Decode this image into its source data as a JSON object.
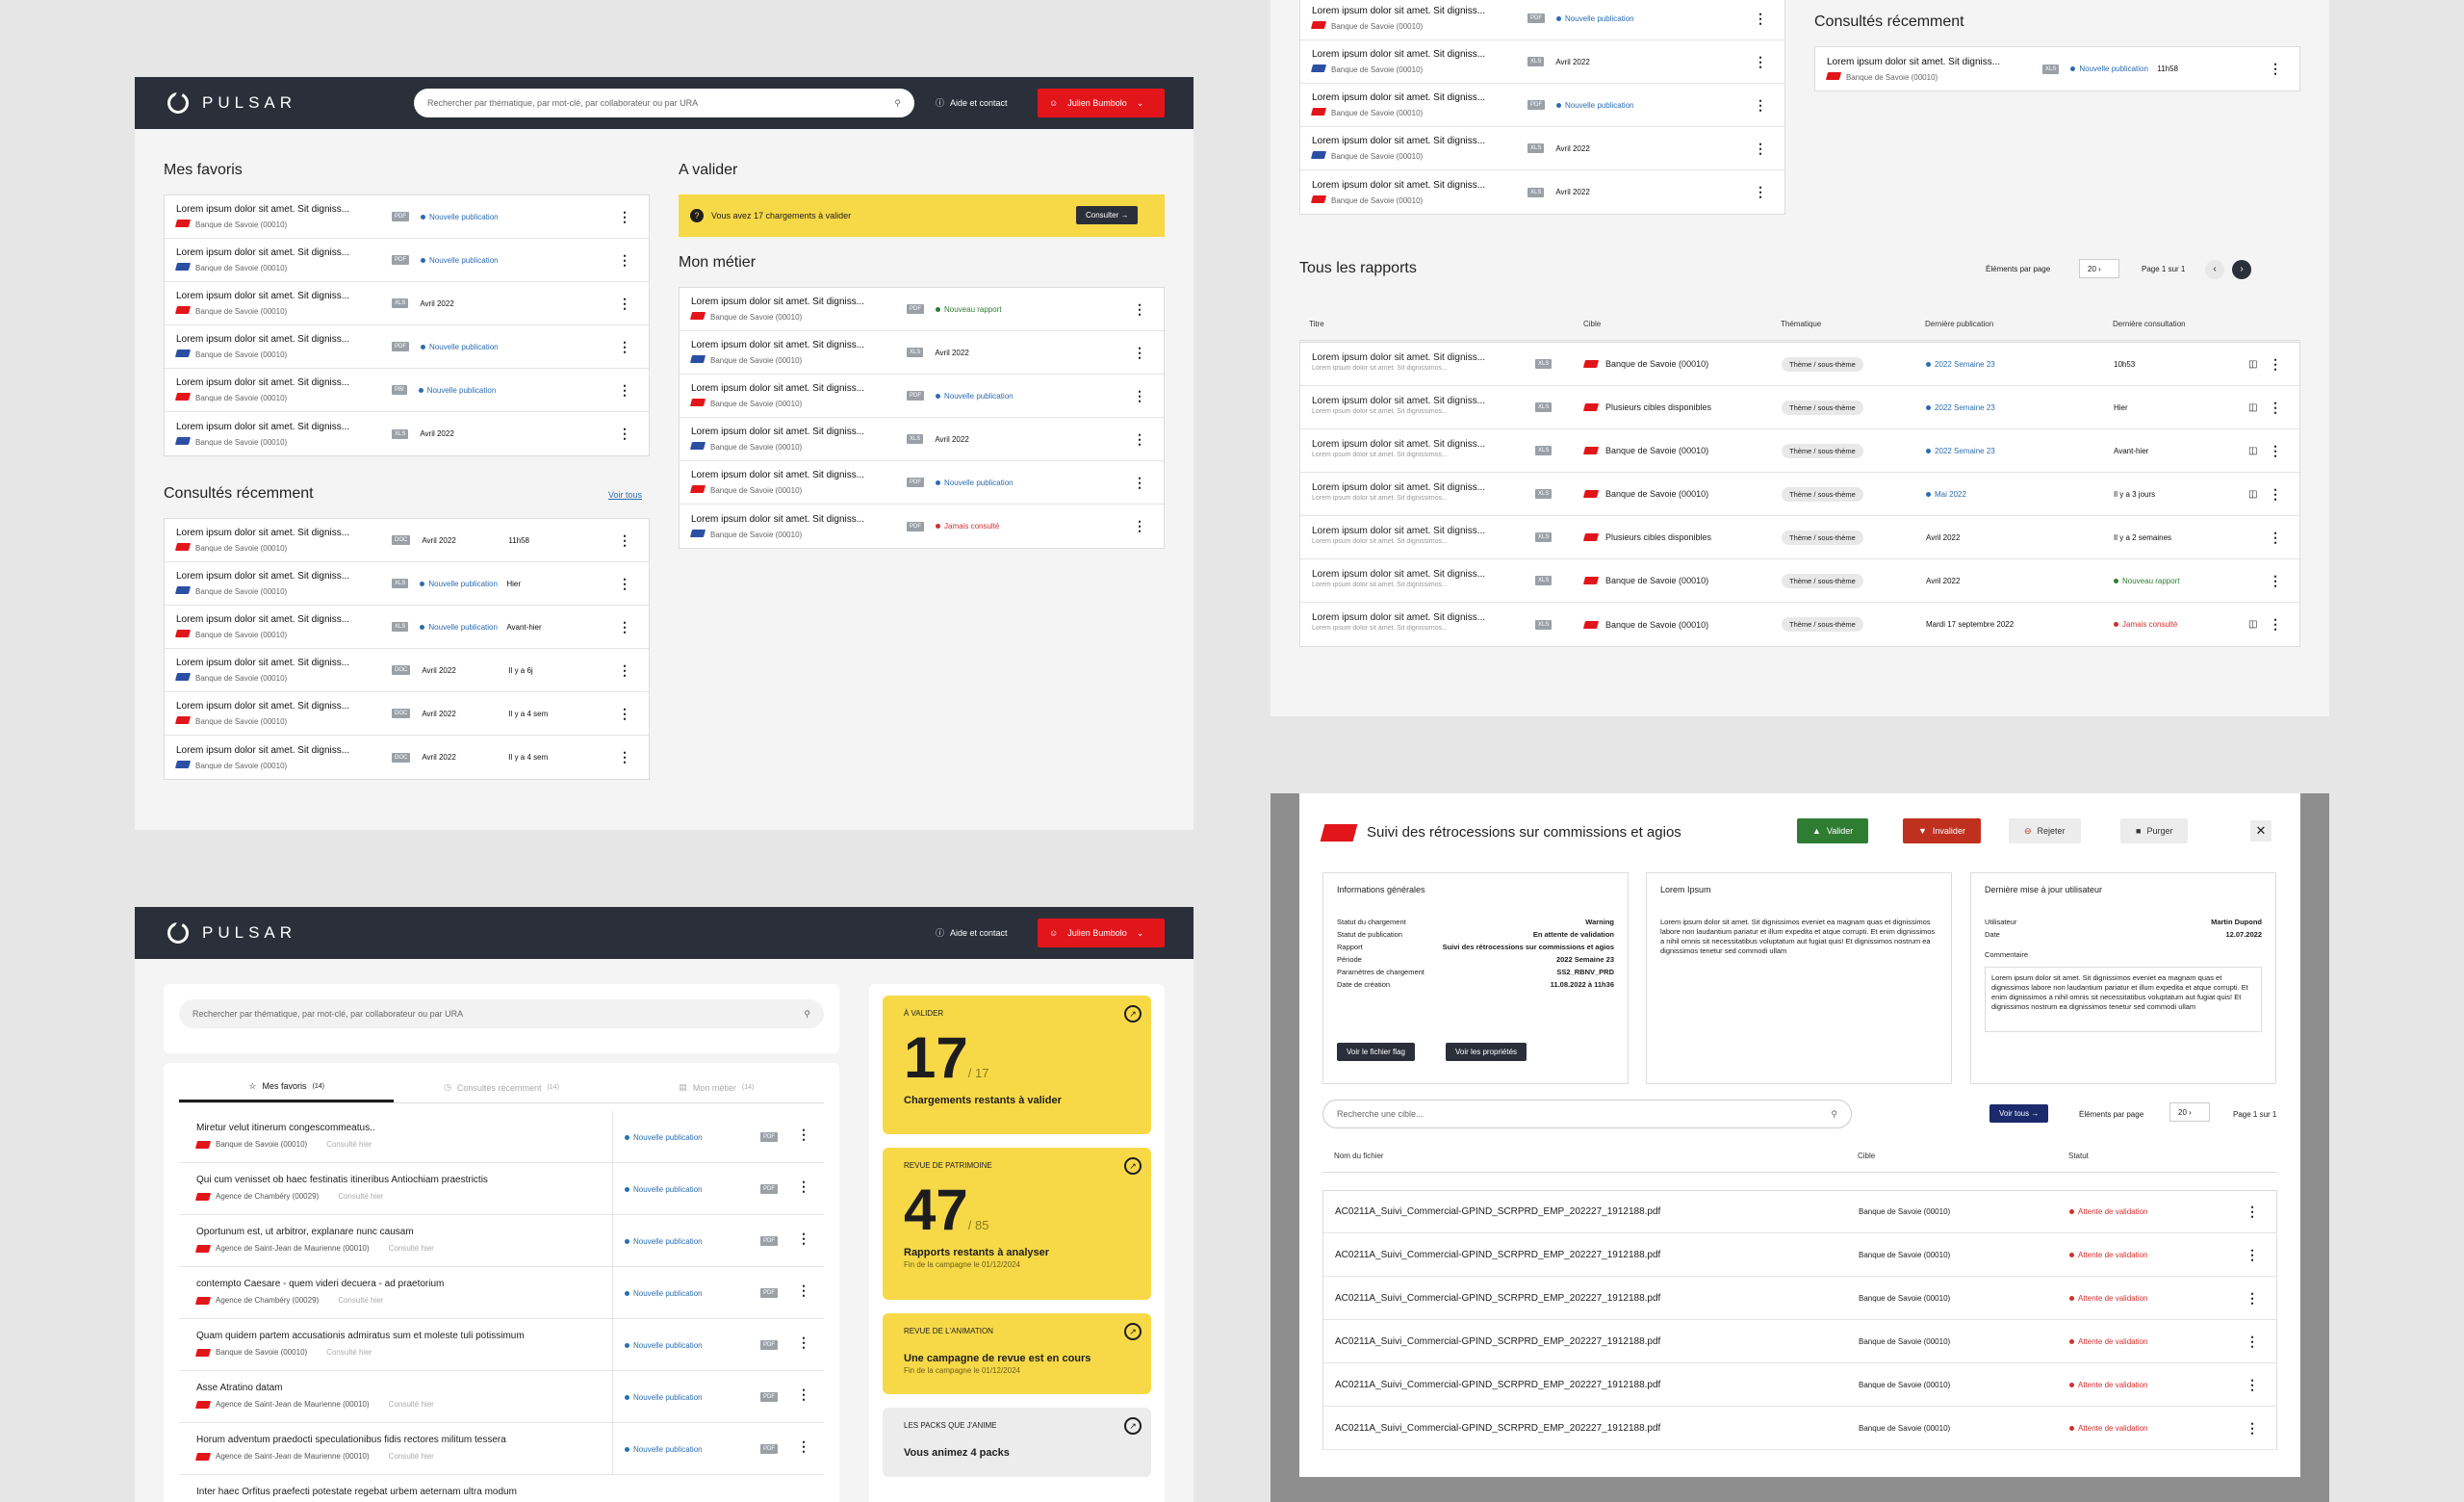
{
  "app": {
    "name": "PULSAR",
    "search_placeholder": "Rechercher par thématique, par mot-clé, par collaborateur ou par URA",
    "help": "Aide et contact",
    "user": "Julien Bumbolo"
  },
  "dash1": {
    "favoris_title": "Mes favoris",
    "favoris": [
      {
        "t": "Lorem ipsum dolor sit amet. Sit digniss...",
        "s": "Banque de Savoie (00010)",
        "tag": "PDF",
        "st": "Nouvelle publication",
        "k": "pub"
      },
      {
        "t": "Lorem ipsum dolor sit amet. Sit digniss...",
        "s": "Banque de Savoie (00010)",
        "tag": "PDF",
        "st": "Nouvelle publication",
        "k": "pub"
      },
      {
        "t": "Lorem ipsum dolor sit amet. Sit digniss...",
        "s": "Banque de Savoie (00010)",
        "tag": "XLS",
        "st": "Avril 2022",
        "k": ""
      },
      {
        "t": "Lorem ipsum dolor sit amet. Sit digniss...",
        "s": "Banque de Savoie (00010)",
        "tag": "PDF",
        "st": "Nouvelle publication",
        "k": "pub"
      },
      {
        "t": "Lorem ipsum dolor sit amet. Sit digniss...",
        "s": "Banque de Savoie (00010)",
        "tag": "PBI",
        "st": "Nouvelle publication",
        "k": "pub"
      },
      {
        "t": "Lorem ipsum dolor sit amet. Sit digniss...",
        "s": "Banque de Savoie (00010)",
        "tag": "XLS",
        "st": "Avril 2022",
        "k": ""
      }
    ],
    "recents_title": "Consultés récemment",
    "voir_tous": "Voir tous",
    "recents": [
      {
        "t": "Lorem ipsum dolor sit amet. Sit digniss...",
        "s": "Banque de Savoie (00010)",
        "tag": "DOC",
        "st": "Avril 2022",
        "k": "",
        "tm": "11h58"
      },
      {
        "t": "Lorem ipsum dolor sit amet. Sit digniss...",
        "s": "Banque de Savoie (00010)",
        "tag": "XLS",
        "st": "Nouvelle publication",
        "k": "pub",
        "tm": "Hier"
      },
      {
        "t": "Lorem ipsum dolor sit amet. Sit digniss...",
        "s": "Banque de Savoie (00010)",
        "tag": "XLS",
        "st": "Nouvelle publication",
        "k": "pub",
        "tm": "Avant-hier"
      },
      {
        "t": "Lorem ipsum dolor sit amet. Sit digniss...",
        "s": "Banque de Savoie (00010)",
        "tag": "DOC",
        "st": "Avril 2022",
        "k": "",
        "tm": "Il y a 6j"
      },
      {
        "t": "Lorem ipsum dolor sit amet. Sit digniss...",
        "s": "Banque de Savoie (00010)",
        "tag": "DOC",
        "st": "Avril 2022",
        "k": "",
        "tm": "Il y a 4 sem"
      },
      {
        "t": "Lorem ipsum dolor sit amet. Sit digniss...",
        "s": "Banque de Savoie (00010)",
        "tag": "DOC",
        "st": "Avril 2022",
        "k": "",
        "tm": "Il y a 4 sem"
      }
    ],
    "valider_title": "A valider",
    "valider_msg": "Vous avez 17 chargements à valider",
    "consulter": "Consulter",
    "metier_title": "Mon métier",
    "metier": [
      {
        "t": "Lorem ipsum dolor sit amet. Sit digniss...",
        "s": "Banque de Savoie (00010)",
        "tag": "PDF",
        "st": "Nouveau rapport",
        "k": "new"
      },
      {
        "t": "Lorem ipsum dolor sit amet. Sit digniss...",
        "s": "Banque de Savoie (00010)",
        "tag": "XLS",
        "st": "Avril 2022",
        "k": ""
      },
      {
        "t": "Lorem ipsum dolor sit amet. Sit digniss...",
        "s": "Banque de Savoie (00010)",
        "tag": "PDF",
        "st": "Nouvelle publication",
        "k": "pub"
      },
      {
        "t": "Lorem ipsum dolor sit amet. Sit digniss...",
        "s": "Banque de Savoie (00010)",
        "tag": "XLS",
        "st": "Avril 2022",
        "k": ""
      },
      {
        "t": "Lorem ipsum dolor sit amet. Sit digniss...",
        "s": "Banque de Savoie (00010)",
        "tag": "PDF",
        "st": "Nouvelle publication",
        "k": "pub"
      },
      {
        "t": "Lorem ipsum dolor sit amet. Sit digniss...",
        "s": "Banque de Savoie (00010)",
        "tag": "PDF",
        "st": "Jamais consulté",
        "k": "red"
      }
    ]
  },
  "dash2": {
    "rows": [
      {
        "t": "Lorem ipsum dolor sit amet. Sit digniss...",
        "s": "Banque de Savoie (00010)",
        "tag": "PDF",
        "st": "Nouvelle publication",
        "k": "pub"
      },
      {
        "t": "Lorem ipsum dolor sit amet. Sit digniss...",
        "s": "Banque de Savoie (00010)",
        "tag": "XLS",
        "st": "Avril 2022",
        "k": ""
      },
      {
        "t": "Lorem ipsum dolor sit amet. Sit digniss...",
        "s": "Banque de Savoie (00010)",
        "tag": "PDF",
        "st": "Nouvelle publication",
        "k": "pub"
      },
      {
        "t": "Lorem ipsum dolor sit amet. Sit digniss...",
        "s": "Banque de Savoie (00010)",
        "tag": "XLS",
        "st": "Avril 2022",
        "k": ""
      },
      {
        "t": "Lorem ipsum dolor sit amet. Sit digniss...",
        "s": "Banque de Savoie (00010)",
        "tag": "XLS",
        "st": "Avril 2022",
        "k": ""
      }
    ],
    "recent_title": "Consultés récemment",
    "recent_row": {
      "t": "Lorem ipsum dolor sit amet. Sit digniss...",
      "s": "Banque de Savoie (00010)",
      "tag": "XLS",
      "st": "Nouvelle publication",
      "tm": "11h58"
    },
    "rapports_title": "Tous les rapports",
    "per_page": "Éléments par page",
    "per_page_val": "20",
    "page": "Page 1 sur 1",
    "cols": [
      "Titre",
      "Cible",
      "Thématique",
      "Dernière publication",
      "Dernière consultation"
    ],
    "rapports": [
      {
        "t": "Lorem ipsum dolor sit amet. Sit digniss...",
        "sub": "Lorem ipsum dolor sit amet. Sit dignissimos...",
        "tag": "XLS",
        "c": "Banque de Savoie (00010)",
        "th": "Thème / sous-thème",
        "p": "2022 Semaine 23",
        "pk": "pub",
        "d": "10h53",
        "dk": ""
      },
      {
        "t": "Lorem ipsum dolor sit amet. Sit digniss...",
        "sub": "Lorem ipsum dolor sit amet. Sit dignissimos...",
        "tag": "XLS",
        "c": "Plusieurs cibles disponibles",
        "th": "Thème / sous-thème",
        "p": "2022 Semaine 23",
        "pk": "pub",
        "d": "Hier",
        "dk": ""
      },
      {
        "t": "Lorem ipsum dolor sit amet. Sit digniss...",
        "sub": "Lorem ipsum dolor sit amet. Sit dignissimos...",
        "tag": "XLS",
        "c": "Banque de Savoie (00010)",
        "th": "Thème / sous-thème",
        "p": "2022 Semaine 23",
        "pk": "pub",
        "d": "Avant-hier",
        "dk": ""
      },
      {
        "t": "Lorem ipsum dolor sit amet. Sit digniss...",
        "sub": "Lorem ipsum dolor sit amet. Sit dignissimos...",
        "tag": "XLS",
        "c": "Banque de Savoie (00010)",
        "th": "Thème / sous-thème",
        "p": "Mai 2022",
        "pk": "pub",
        "d": "Il y a 3 jours",
        "dk": ""
      },
      {
        "t": "Lorem ipsum dolor sit amet. Sit digniss...",
        "sub": "Lorem ipsum dolor sit amet. Sit dignissimos...",
        "tag": "XLS",
        "c": "Plusieurs cibles disponibles",
        "th": "Thème / sous-thème",
        "p": "Avril 2022",
        "pk": "",
        "d": "Il y a 2 semaines",
        "dk": ""
      },
      {
        "t": "Lorem ipsum dolor sit amet. Sit digniss...",
        "sub": "Lorem ipsum dolor sit amet. Sit dignissimos...",
        "tag": "XLS",
        "c": "Banque de Savoie (00010)",
        "th": "Thème / sous-thème",
        "p": "Avril 2022",
        "pk": "",
        "d": "Nouveau rapport",
        "dk": "new"
      },
      {
        "t": "Lorem ipsum dolor sit amet. Sit digniss...",
        "sub": "Lorem ipsum dolor sit amet. Sit dignissimos...",
        "tag": "XLS",
        "c": "Banque de Savoie (00010)",
        "th": "Thème / sous-thème",
        "p": "Mardi 17 septembre 2022",
        "pk": "",
        "d": "Jamais consulté",
        "dk": "red"
      }
    ]
  },
  "dash3": {
    "tabs": [
      {
        "l": "Mes favoris",
        "n": "(14)"
      },
      {
        "l": "Consultés récemment",
        "n": "(14)"
      },
      {
        "l": "Mon métier",
        "n": "(14)"
      }
    ],
    "rows": [
      {
        "t": "Miretur velut itinerum congescommeatus..",
        "s": "Banque de Savoie (00010)",
        "c": "Consulté hier"
      },
      {
        "t": "Qui cum venisset ob haec festinatis itineribus Antiochiam praestrictis",
        "s": "Agence de Chambéry (00029)",
        "c": "Consulté hier"
      },
      {
        "t": "Oportunum est, ut arbitror, explanare nunc causam",
        "s": "Agence de Saint-Jean de Maurienne (00010)",
        "c": "Consulté hier"
      },
      {
        "t": "contempto Caesare - quem videri decuera - ad praetorium",
        "s": "Agence de Chambéry (00029)",
        "c": "Consulté hier"
      },
      {
        "t": "Quam quidem partem accusationis admiratus sum et moleste tuli potissimum",
        "s": "Banque de Savoie (00010)",
        "c": "Consulté hier"
      },
      {
        "t": "Asse Atratino datam",
        "s": "Agence de Saint-Jean de Maurienne (00010)",
        "c": "Consulté hier"
      },
      {
        "t": "Horum adventum praedocti speculationibus fidis rectores militum tessera",
        "s": "Agence de Saint-Jean de Maurienne (00010)",
        "c": "Consulté hier"
      },
      {
        "t": "Inter haec Orfitus praefecti potestate regebat urbem aeternam ultra modum",
        "s": "",
        "c": ""
      }
    ],
    "status": "Nouvelle publication",
    "tag": "PDF",
    "cards": [
      {
        "h": "À VALIDER",
        "n": "17",
        "of": "/ 17",
        "l": "Chargements restants à valider",
        "sub": ""
      },
      {
        "h": "REVUE DE PATRIMOINE",
        "n": "47",
        "of": "/ 85",
        "l": "Rapports restants à analyser",
        "sub": "Fin de la campagne le 01/12/2024"
      },
      {
        "h": "REVUE DE L'ANIMATION",
        "n": "",
        "of": "",
        "l": "Une campagne de revue est en cours",
        "sub": "Fin de la campagne le 01/12/2024"
      },
      {
        "h": "LES PACKS QUE J'ANIME",
        "n": "",
        "of": "",
        "l": "Vous animez 4 packs",
        "sub": ""
      }
    ]
  },
  "modal": {
    "title": "Suivi des rétrocessions sur commissions et agios",
    "valider": "Valider",
    "invalider": "Invalider",
    "rejeter": "Rejeter",
    "purger": "Purger",
    "info_title": "Informations générales",
    "info": [
      [
        "Statut du chargement",
        "Warning"
      ],
      [
        "Statut de publication",
        "En attente de validation"
      ],
      [
        "Rapport",
        "Suivi des rétrocessions sur commissions et agios"
      ],
      [
        "Période",
        "2022 Semaine 23"
      ],
      [
        "Paramètres de chargement",
        "SS2_RBNV_PRD"
      ],
      [
        "Date de création",
        "11.08.2022 à 11h36"
      ]
    ],
    "btn_flag": "Voir le fichier flag",
    "btn_props": "Voir les propriétés",
    "lorem_title": "Lorem Ipsum",
    "lorem_text": "Lorem ipsum dolor sit amet. Sit dignissimos eveniet ea magnam quas et dignissimos labore non laudantium pariatur et illum expedita et atque corrupti. Et enim dignissimos a nihil omnis sit necessitatibus voluptatum aut fugiat quis! Et dignissimos nostrum ea dignissimos tenetur sed commodi ullam",
    "maj_title": "Dernière mise à jour utilisateur",
    "maj": [
      [
        "Utilisateur",
        "Martin Dupond"
      ],
      [
        "Date",
        "12.07.2022"
      ]
    ],
    "comment_label": "Commentaire",
    "comment": "Lorem ipsum dolor sit amet. Sit dignissimos eveniet ea magnam quas et dignissimos labore non laudantium pariatur et illum expedita et atque corrupti. Et enim dignissimos a nihil omnis sit necessitatibus voluptatum aut fugiat quis! Et dignissimos nostrum ea dignissimos tenetur sed commodi ullam",
    "search_placeholder": "Recherche une cible...",
    "voir_tous": "Voir tous",
    "per_page": "Éléments par page",
    "per_page_val": "20",
    "page": "Page 1 sur 1",
    "cols": [
      "Nom du fichier",
      "Cible",
      "Statut"
    ],
    "file": "AC0211A_Suivi_Commercial-GPIND_SCRPRD_EMP_202227_1912188.pdf",
    "cible": "Banque de Savoie (00010)",
    "statut": "Attente de validation",
    "nrows": 6
  }
}
